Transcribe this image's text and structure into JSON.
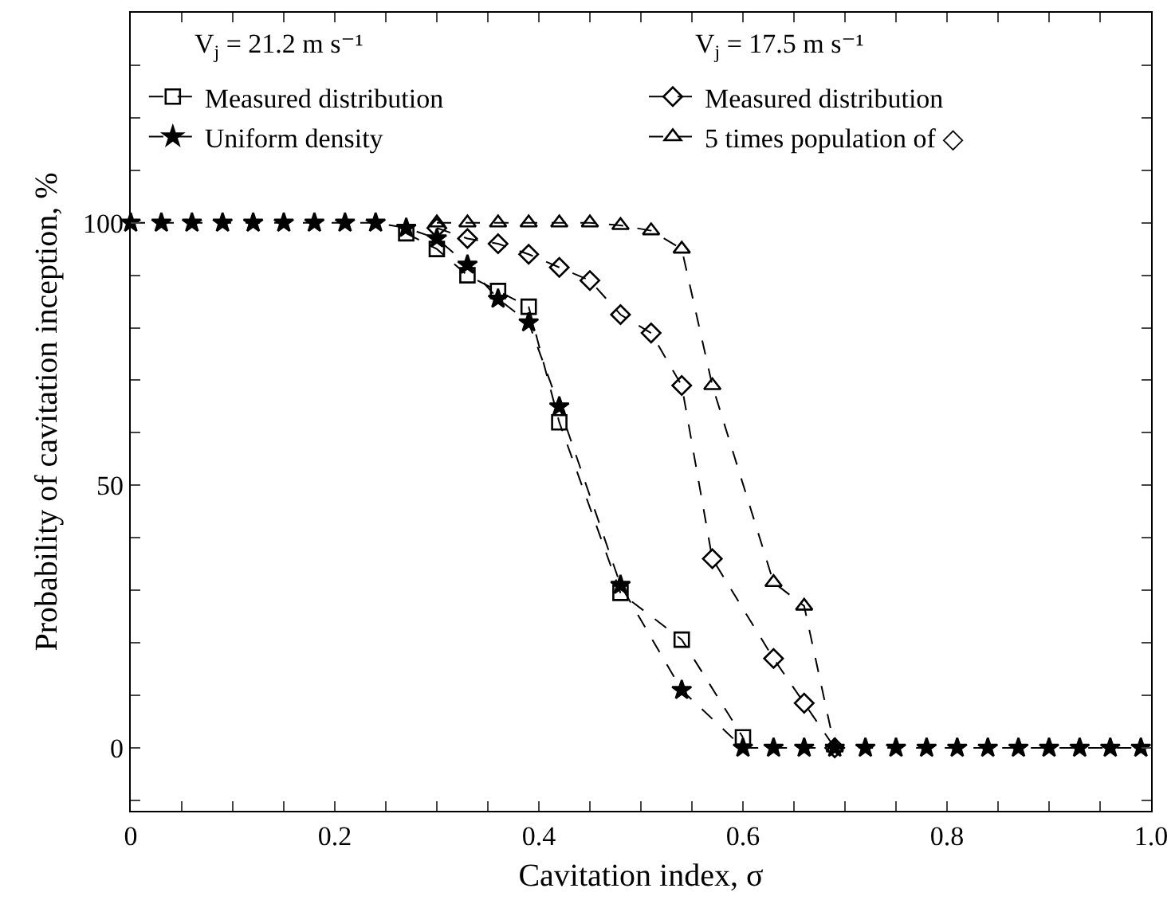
{
  "chart_data": {
    "type": "line",
    "xlabel": "Cavitation index, σ",
    "ylabel": "Probability of cavitation inception, %",
    "x": [
      0,
      0.03,
      0.06,
      0.09,
      0.12,
      0.15,
      0.18,
      0.21,
      0.24,
      0.27,
      0.3,
      0.33,
      0.36,
      0.39,
      0.42,
      0.45,
      0.48,
      0.51,
      0.54,
      0.57,
      0.6,
      0.63,
      0.66,
      0.69,
      0.72,
      0.75,
      0.78,
      0.81,
      0.84,
      0.87,
      0.9,
      0.93,
      0.96,
      0.99
    ],
    "series": [
      {
        "name": "Measured distribution",
        "color": "#000000",
        "marker": "square",
        "values": [
          null,
          null,
          null,
          null,
          null,
          null,
          null,
          null,
          null,
          98,
          95,
          90,
          87,
          84,
          62,
          null,
          29.5,
          null,
          20.6,
          null,
          2,
          null,
          null,
          null,
          null,
          null,
          null,
          null,
          null,
          null,
          null,
          null,
          null,
          null
        ]
      },
      {
        "name": "Uniform density",
        "color": "#000000",
        "marker": "star",
        "values": [
          100,
          100,
          100,
          100,
          100,
          100,
          100,
          100,
          100,
          99,
          97,
          92,
          85.5,
          81,
          65,
          null,
          31,
          null,
          11,
          null,
          0,
          0,
          0,
          0,
          0,
          0,
          0,
          0,
          0,
          0,
          0,
          0,
          0,
          0
        ]
      },
      {
        "name": "Measured distribution",
        "color": "#000000",
        "marker": "diamond",
        "values": [
          null,
          null,
          null,
          null,
          null,
          null,
          null,
          null,
          null,
          null,
          99,
          97,
          96,
          94,
          91.5,
          89,
          82.5,
          79,
          69,
          36,
          null,
          17,
          8.5,
          0,
          null,
          null,
          null,
          null,
          null,
          null,
          null,
          null,
          null,
          null
        ]
      },
      {
        "name": "5 times population of ◇",
        "color": "#000000",
        "marker": "triangle",
        "values": [
          null,
          null,
          null,
          null,
          null,
          null,
          null,
          null,
          null,
          null,
          100,
          100,
          100,
          100,
          100,
          100,
          99.5,
          98.5,
          95,
          69,
          null,
          31.5,
          27,
          0,
          null,
          null,
          null,
          null,
          null,
          null,
          null,
          null,
          null,
          null
        ]
      }
    ],
    "annotations": [
      "V$_{j}$ = 21.2 m s⁻¹",
      "V$_{j}$ = 17.5 m s⁻¹"
    ],
    "xlim": [
      0,
      1
    ],
    "xticks": [
      0,
      {
        "value": 0.05,
        "label": null
      },
      {
        "value": 0.1,
        "label": null
      },
      {
        "value": 0.15,
        "label": null
      },
      0.2,
      {
        "value": 0.25,
        "label": null
      },
      {
        "value": 0.3,
        "label": null
      },
      {
        "value": 0.35,
        "label": null
      },
      0.4,
      {
        "value": 0.45,
        "label": null
      },
      {
        "value": 0.5,
        "label": null
      },
      {
        "value": 0.55,
        "label": null
      },
      0.6,
      {
        "value": 0.65,
        "label": null
      },
      {
        "value": 0.7,
        "label": null
      },
      {
        "value": 0.75,
        "label": null
      },
      0.8,
      {
        "value": 0.85,
        "label": null
      },
      {
        "value": 0.9,
        "label": null
      },
      {
        "value": 0.95,
        "label": null
      },
      {
        "value": 1,
        "label": "1.0"
      }
    ],
    "ylim": [
      -12,
      140
    ],
    "yticks": [
      {
        "value": -10,
        "label": null
      },
      0,
      {
        "value": 10,
        "label": null
      },
      {
        "value": 20,
        "label": null
      },
      {
        "value": 30,
        "label": null
      },
      {
        "value": 40,
        "label": null
      },
      50,
      {
        "value": 60,
        "label": null
      },
      {
        "value": 70,
        "label": null
      },
      {
        "value": 80,
        "label": null
      },
      {
        "value": 90,
        "label": null
      },
      100,
      {
        "value": 110,
        "label": null
      },
      {
        "value": 120,
        "label": null
      },
      {
        "value": 130,
        "label": null
      }
    ],
    "grid": false,
    "legend": "top left",
    "line_style": "dashed"
  }
}
